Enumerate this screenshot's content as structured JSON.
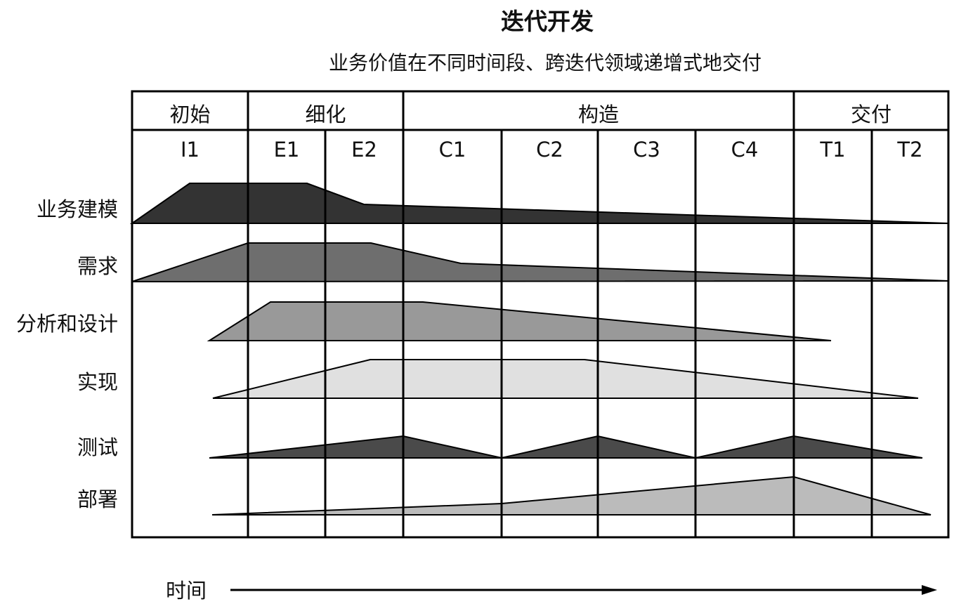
{
  "title": "迭代开发",
  "subtitle": "业务价值在不同时间段、跨迭代领域递增式地交付",
  "phases": [
    "初始",
    "细化",
    "构造",
    "交付"
  ],
  "iterations": [
    "I1",
    "E1",
    "E2",
    "C1",
    "C2",
    "C3",
    "C4",
    "T1",
    "T2"
  ],
  "disciplines": [
    {
      "name": "业务建模",
      "color": "#333333"
    },
    {
      "name": "需求",
      "color": "#6e6e6e"
    },
    {
      "name": "分析和设计",
      "color": "#999999"
    },
    {
      "name": "实现",
      "color": "#e0e0e0"
    },
    {
      "name": "测试",
      "color": "#4a4a4a"
    },
    {
      "name": "部署",
      "color": "#bbbbbb"
    }
  ],
  "time_label": "时间"
}
